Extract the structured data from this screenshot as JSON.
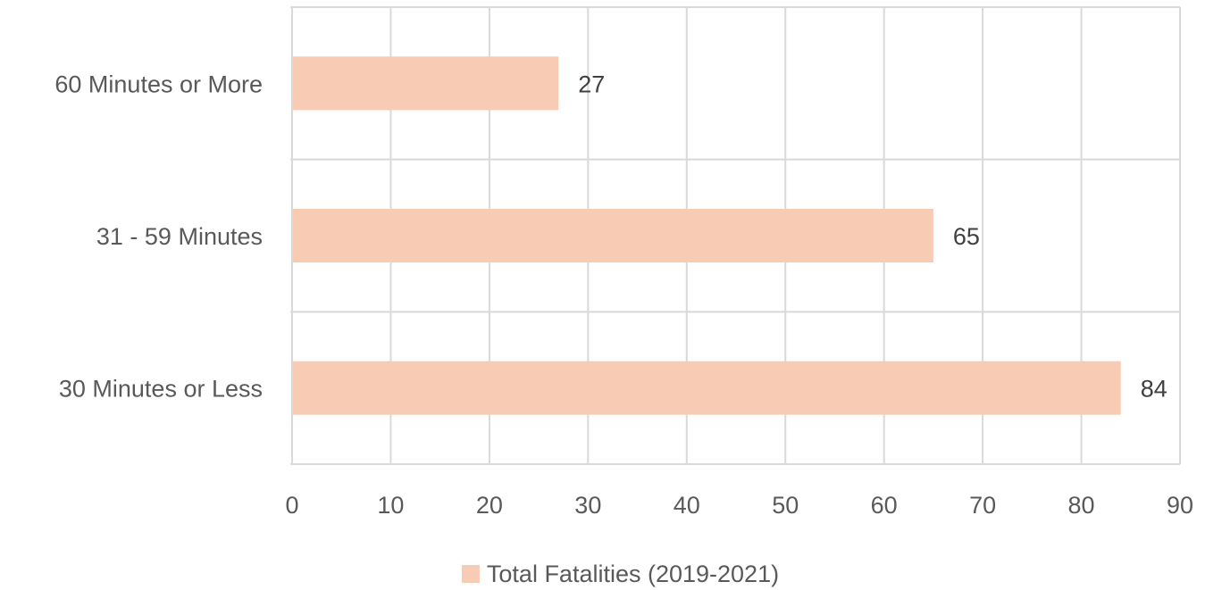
{
  "chart_data": {
    "type": "bar",
    "orientation": "horizontal",
    "categories": [
      "60 Minutes or More",
      "31 - 59 Minutes",
      "30 Minutes or Less"
    ],
    "series": [
      {
        "name": "Total Fatalities (2019-2021)",
        "values": [
          27,
          65,
          84
        ],
        "color": "#f8cbb4"
      }
    ],
    "xlim": [
      0,
      90
    ],
    "xticks": [
      0,
      10,
      20,
      30,
      40,
      50,
      60,
      70,
      80,
      90
    ],
    "title": "",
    "xlabel": "",
    "ylabel": "",
    "grid": true,
    "gridColor": "#d9d9d9",
    "legend": {
      "position": "bottom"
    },
    "data_labels": [
      "27",
      "65",
      "84"
    ]
  }
}
